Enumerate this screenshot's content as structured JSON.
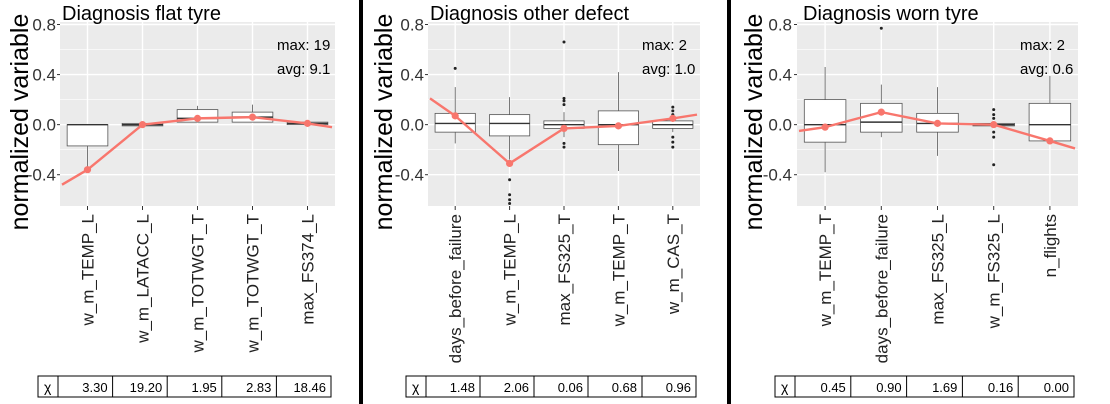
{
  "figure": {
    "shared_ylabel": "normalized variable",
    "table_symbol": "χ"
  },
  "colors": {
    "panel_bg": "#ebebeb",
    "grid": "#ffffff",
    "line": "#f8766d",
    "box_fill": "#ffffff",
    "box_stroke": "#555555"
  },
  "chart_data": [
    {
      "type": "box",
      "title": "Diagnosis flat tyre",
      "ylabel": "normalized variable",
      "xlabel": "",
      "ylim": [
        -0.65,
        0.82
      ],
      "yticks": [
        0.8,
        0.4,
        0.0,
        -0.4
      ],
      "ytick_labels": [
        "0.8",
        "0.4",
        "0.0",
        "-0.4"
      ],
      "grid": true,
      "annotation": {
        "max_label": "max:",
        "max_value": "19",
        "avg_label": "avg:",
        "avg_value": "9.1"
      },
      "categories": [
        "w_m_TEMP_L",
        "w_m_LATACC_L",
        "w_m_TOTWGT_T",
        "w_m_TOTWGT_T",
        "max_FS374_L"
      ],
      "boxes": [
        {
          "q1": -0.17,
          "median": 0.0,
          "q3": 0.0,
          "whisker_low": -0.36,
          "whisker_high": 0.0,
          "outliers": []
        },
        {
          "q1": -0.01,
          "median": 0.0,
          "q3": 0.01,
          "whisker_low": -0.01,
          "whisker_high": 0.01,
          "outliers": []
        },
        {
          "q1": 0.02,
          "median": 0.05,
          "q3": 0.12,
          "whisker_low": 0.02,
          "whisker_high": 0.15,
          "outliers": []
        },
        {
          "q1": 0.02,
          "median": 0.06,
          "q3": 0.1,
          "whisker_low": 0.02,
          "whisker_high": 0.16,
          "outliers": []
        },
        {
          "q1": 0.0,
          "median": 0.01,
          "q3": 0.02,
          "whisker_low": 0.0,
          "whisker_high": 0.02,
          "outliers": []
        }
      ],
      "trend_points": [
        -0.36,
        0.0,
        0.05,
        0.06,
        0.01
      ],
      "trend_start": -0.48,
      "trend_end": -0.02,
      "table_values": [
        "3.30",
        "19.20",
        "1.95",
        "2.83",
        "18.46"
      ]
    },
    {
      "type": "box",
      "title": "Diagnosis other defect",
      "ylabel": "normalized variable",
      "xlabel": "",
      "ylim": [
        -0.65,
        0.82
      ],
      "yticks": [
        0.8,
        0.4,
        0.0,
        -0.4
      ],
      "ytick_labels": [
        "0.8",
        "0.4",
        "0.0",
        "-0.4"
      ],
      "grid": true,
      "annotation": {
        "max_label": "max:",
        "max_value": "2",
        "avg_label": "avg:",
        "avg_value": "1.0"
      },
      "categories": [
        "days_before_failure",
        "w_m_TEMP_L",
        "max_FS325_T",
        "w_m_TEMP_T",
        "w_m_CAS_T"
      ],
      "boxes": [
        {
          "q1": -0.06,
          "median": 0.01,
          "q3": 0.09,
          "whisker_low": -0.15,
          "whisker_high": 0.3,
          "outliers": [
            0.45
          ]
        },
        {
          "q1": -0.09,
          "median": 0.01,
          "q3": 0.08,
          "whisker_low": -0.28,
          "whisker_high": 0.22,
          "outliers": [
            -0.44,
            -0.56,
            -0.6,
            -0.63
          ]
        },
        {
          "q1": -0.03,
          "median": 0.0,
          "q3": 0.03,
          "whisker_low": -0.1,
          "whisker_high": 0.1,
          "outliers": [
            0.16,
            0.19,
            0.21,
            0.66,
            -0.15,
            -0.18
          ]
        },
        {
          "q1": -0.16,
          "median": 0.0,
          "q3": 0.11,
          "whisker_low": -0.37,
          "whisker_high": 0.42,
          "outliers": []
        },
        {
          "q1": -0.03,
          "median": 0.0,
          "q3": 0.03,
          "whisker_low": -0.06,
          "whisker_high": 0.06,
          "outliers": [
            0.08,
            0.11,
            0.14,
            -0.1,
            -0.14,
            -0.18
          ]
        }
      ],
      "trend_points": [
        0.07,
        -0.31,
        -0.03,
        -0.01,
        0.05
      ],
      "trend_start": 0.21,
      "trend_end": 0.08,
      "table_values": [
        "1.48",
        "2.06",
        "0.06",
        "0.68",
        "0.96"
      ]
    },
    {
      "type": "box",
      "title": "Diagnosis worn tyre",
      "ylabel": "normalized variable",
      "xlabel": "",
      "ylim": [
        -0.65,
        0.82
      ],
      "yticks": [
        0.8,
        0.4,
        0.0,
        -0.4
      ],
      "ytick_labels": [
        "0.8",
        "0.4",
        "0.0",
        "-0.4"
      ],
      "grid": true,
      "annotation": {
        "max_label": "max:",
        "max_value": "2",
        "avg_label": "avg:",
        "avg_value": "0.6"
      },
      "categories": [
        "w_m_TEMP_T",
        "days_before_failure",
        "max_FS325_L",
        "w_m_FS325_L",
        "n_flights"
      ],
      "boxes": [
        {
          "q1": -0.14,
          "median": 0.0,
          "q3": 0.2,
          "whisker_low": -0.38,
          "whisker_high": 0.46,
          "outliers": []
        },
        {
          "q1": -0.06,
          "median": 0.02,
          "q3": 0.17,
          "whisker_low": -0.1,
          "whisker_high": 0.32,
          "outliers": [
            0.77
          ]
        },
        {
          "q1": -0.06,
          "median": 0.01,
          "q3": 0.09,
          "whisker_low": -0.25,
          "whisker_high": 0.3,
          "outliers": []
        },
        {
          "q1": -0.01,
          "median": 0.0,
          "q3": 0.01,
          "whisker_low": -0.02,
          "whisker_high": 0.02,
          "outliers": [
            0.05,
            0.08,
            0.12,
            -0.06,
            -0.1,
            -0.32
          ]
        },
        {
          "q1": -0.13,
          "median": 0.0,
          "q3": 0.17,
          "whisker_low": -0.13,
          "whisker_high": 0.39,
          "outliers": []
        }
      ],
      "trend_points": [
        -0.02,
        0.1,
        0.01,
        0.0,
        -0.13
      ],
      "trend_start": -0.05,
      "trend_end": -0.19,
      "table_values": [
        "0.45",
        "0.90",
        "1.69",
        "0.16",
        "0.00"
      ]
    }
  ]
}
